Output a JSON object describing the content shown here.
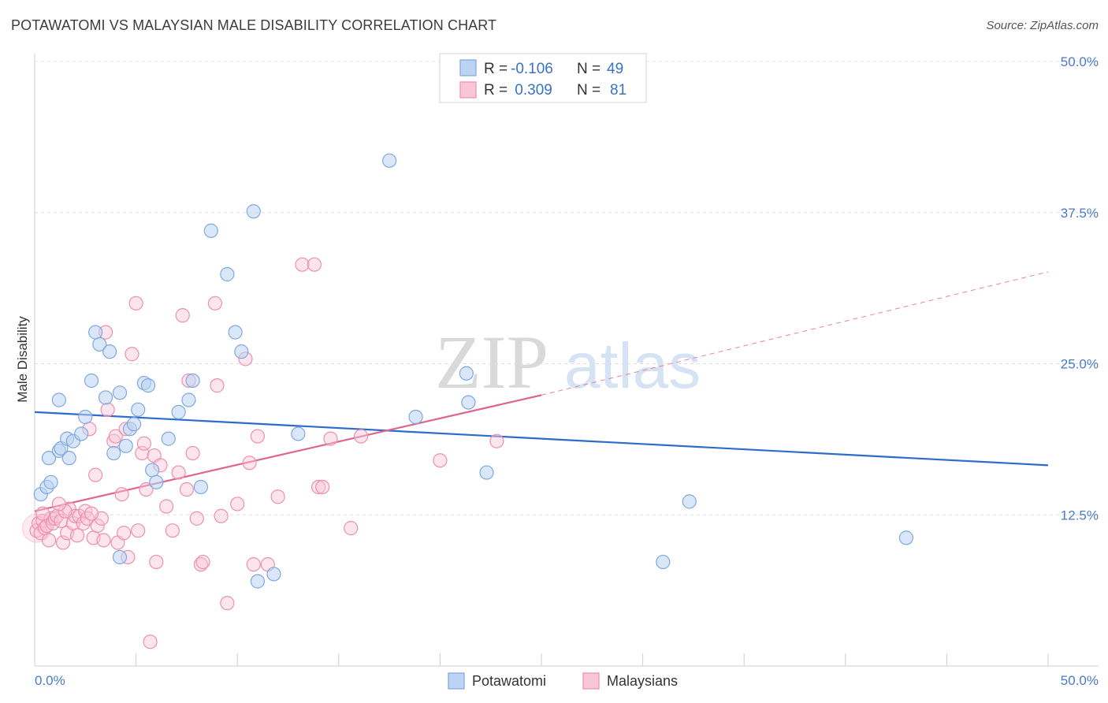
{
  "title": "POTAWATOMI VS MALAYSIAN MALE DISABILITY CORRELATION CHART",
  "source": "Source: ZipAtlas.com",
  "watermark": {
    "part1": "ZIP",
    "part2": "atlas"
  },
  "colors": {
    "blue": "#7fa8e0",
    "blue_fill": "#bcd3f3",
    "blue_line": "#2e6ccc",
    "pink": "#ee8fb0",
    "pink_fill": "#f8c6d7",
    "pink_line": "#e06690"
  },
  "legend": {
    "rows": [
      {
        "r_label": "R =",
        "r_value": "-0.106",
        "n_label": "N =",
        "n_value": "49"
      },
      {
        "r_label": "R =",
        "r_value": " 0.309",
        "n_label": "N =",
        "n_value": "81"
      }
    ]
  },
  "bottom_legend": {
    "blue": "Potawatomi",
    "pink": "Malaysians"
  },
  "chart_data": {
    "type": "scatter",
    "title": "POTAWATOMI VS MALAYSIAN MALE DISABILITY CORRELATION CHART",
    "xlabel": "",
    "ylabel": "Male Disability",
    "xlim": [
      0,
      50
    ],
    "ylim": [
      0,
      50
    ],
    "x_tick_labels": [
      "0.0%",
      "50.0%"
    ],
    "y_ticks": [
      12.5,
      25.0,
      37.5,
      50.0
    ],
    "y_tick_labels": [
      "12.5%",
      "25.0%",
      "37.5%",
      "50.0%"
    ],
    "series": [
      {
        "name": "Potawatomi",
        "r": -0.106,
        "n": 49,
        "trend": {
          "x0": 0,
          "y0": 21.0,
          "x1": 50,
          "y1": 16.6,
          "dashed_to": 50
        },
        "points": [
          [
            0.3,
            14.2
          ],
          [
            0.6,
            14.8
          ],
          [
            0.8,
            15.2
          ],
          [
            0.7,
            17.2
          ],
          [
            1.2,
            17.8
          ],
          [
            1.3,
            18.0
          ],
          [
            1.6,
            18.8
          ],
          [
            1.7,
            17.2
          ],
          [
            1.9,
            18.6
          ],
          [
            2.3,
            19.2
          ],
          [
            2.5,
            20.6
          ],
          [
            2.8,
            23.6
          ],
          [
            3.0,
            27.6
          ],
          [
            3.2,
            26.6
          ],
          [
            3.5,
            22.2
          ],
          [
            3.7,
            26.0
          ],
          [
            3.9,
            17.6
          ],
          [
            4.2,
            22.6
          ],
          [
            4.5,
            18.2
          ],
          [
            4.7,
            19.6
          ],
          [
            4.9,
            20.0
          ],
          [
            5.1,
            21.2
          ],
          [
            5.4,
            23.4
          ],
          [
            5.6,
            23.2
          ],
          [
            5.8,
            16.2
          ],
          [
            6.0,
            15.2
          ],
          [
            6.6,
            18.8
          ],
          [
            7.1,
            21.0
          ],
          [
            7.6,
            22.0
          ],
          [
            7.8,
            23.6
          ],
          [
            8.2,
            14.8
          ],
          [
            8.7,
            36.0
          ],
          [
            9.5,
            32.4
          ],
          [
            9.9,
            27.6
          ],
          [
            10.2,
            26.0
          ],
          [
            10.8,
            37.6
          ],
          [
            11.0,
            7.0
          ],
          [
            11.8,
            7.6
          ],
          [
            13.0,
            19.2
          ],
          [
            17.5,
            41.8
          ],
          [
            18.8,
            20.6
          ],
          [
            21.3,
            24.2
          ],
          [
            21.4,
            21.8
          ],
          [
            22.3,
            16.0
          ],
          [
            31.0,
            8.6
          ],
          [
            32.3,
            13.6
          ],
          [
            43.0,
            10.6
          ],
          [
            4.2,
            9.0
          ],
          [
            1.2,
            22.0
          ]
        ]
      },
      {
        "name": "Malaysians",
        "r": 0.309,
        "n": 81,
        "trend": {
          "x0": 0,
          "y0": 12.8,
          "x1": 25,
          "y1": 22.4,
          "dashed_to": 50,
          "y_dashed_end": 32.6
        },
        "points": [
          [
            0.1,
            11.2
          ],
          [
            0.2,
            11.8
          ],
          [
            0.3,
            11.0
          ],
          [
            0.4,
            12.0
          ],
          [
            0.5,
            11.4
          ],
          [
            0.6,
            11.6
          ],
          [
            0.8,
            12.2
          ],
          [
            0.9,
            11.8
          ],
          [
            1.0,
            12.2
          ],
          [
            1.1,
            12.4
          ],
          [
            1.3,
            12.0
          ],
          [
            1.4,
            10.2
          ],
          [
            1.6,
            11.0
          ],
          [
            1.7,
            13.0
          ],
          [
            1.9,
            11.8
          ],
          [
            2.0,
            12.4
          ],
          [
            2.2,
            12.4
          ],
          [
            2.4,
            11.8
          ],
          [
            2.5,
            12.8
          ],
          [
            2.6,
            12.2
          ],
          [
            2.7,
            19.6
          ],
          [
            2.9,
            10.6
          ],
          [
            3.1,
            11.6
          ],
          [
            3.3,
            12.2
          ],
          [
            3.5,
            27.6
          ],
          [
            3.6,
            21.2
          ],
          [
            3.9,
            18.6
          ],
          [
            4.0,
            19.0
          ],
          [
            4.1,
            10.2
          ],
          [
            4.3,
            14.2
          ],
          [
            4.5,
            19.6
          ],
          [
            4.6,
            9.0
          ],
          [
            4.8,
            25.8
          ],
          [
            5.0,
            30.0
          ],
          [
            5.1,
            11.2
          ],
          [
            5.3,
            17.6
          ],
          [
            5.4,
            18.4
          ],
          [
            5.5,
            14.6
          ],
          [
            5.9,
            17.4
          ],
          [
            6.0,
            8.6
          ],
          [
            6.2,
            16.6
          ],
          [
            6.5,
            13.2
          ],
          [
            7.1,
            16.0
          ],
          [
            7.3,
            29.0
          ],
          [
            7.6,
            23.6
          ],
          [
            7.8,
            17.6
          ],
          [
            8.0,
            12.2
          ],
          [
            8.2,
            8.4
          ],
          [
            8.3,
            8.6
          ],
          [
            8.9,
            30.0
          ],
          [
            9.0,
            23.2
          ],
          [
            9.5,
            5.2
          ],
          [
            10.0,
            13.4
          ],
          [
            10.4,
            25.4
          ],
          [
            10.6,
            16.8
          ],
          [
            10.8,
            8.4
          ],
          [
            11.0,
            19.0
          ],
          [
            11.5,
            8.4
          ],
          [
            13.2,
            33.2
          ],
          [
            13.8,
            33.2
          ],
          [
            14.0,
            14.8
          ],
          [
            14.2,
            14.8
          ],
          [
            14.6,
            18.8
          ],
          [
            15.6,
            11.4
          ],
          [
            16.1,
            19.0
          ],
          [
            20.0,
            17.0
          ],
          [
            22.8,
            18.6
          ],
          [
            3.0,
            15.8
          ],
          [
            1.5,
            12.8
          ],
          [
            2.1,
            10.8
          ],
          [
            5.7,
            2.0
          ],
          [
            0.7,
            10.4
          ],
          [
            6.8,
            11.2
          ],
          [
            9.2,
            12.4
          ],
          [
            12.0,
            14.0
          ],
          [
            7.5,
            14.6
          ],
          [
            4.4,
            11.0
          ],
          [
            2.8,
            12.6
          ],
          [
            1.2,
            13.4
          ],
          [
            0.4,
            12.6
          ],
          [
            3.4,
            10.4
          ]
        ]
      }
    ]
  }
}
